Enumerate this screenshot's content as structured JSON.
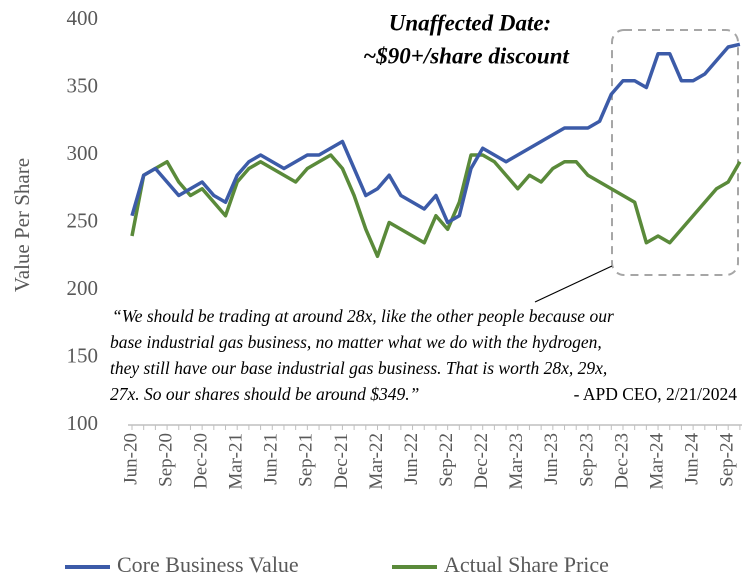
{
  "chart_data": {
    "type": "line",
    "y_label": "Value Per Share",
    "annotation": [
      "Unaffected Date:",
      "~$90+/share discount"
    ],
    "quote": [
      "“We should be trading at around 28x, like the other people because our",
      "base industrial gas business, no matter what we do with the hydrogen,",
      "they still have our base industrial gas business. That is worth 28x, 29x,",
      "27x. So our shares should be around $349.”"
    ],
    "attribution": "- APD CEO, 2/21/2024",
    "categories": [
      "Jun-20",
      null,
      null,
      "Sep-20",
      null,
      null,
      "Dec-20",
      null,
      null,
      "Mar-21",
      null,
      null,
      "Jun-21",
      null,
      null,
      "Sep-21",
      null,
      null,
      "Dec-21",
      null,
      null,
      "Mar-22",
      null,
      null,
      "Jun-22",
      null,
      null,
      "Sep-22",
      null,
      null,
      "Dec-22",
      null,
      null,
      "Mar-23",
      null,
      null,
      "Jun-23",
      null,
      null,
      "Sep-23",
      null,
      null,
      "Dec-23",
      null,
      null,
      "Mar-24",
      null,
      null,
      "Jun-24",
      null,
      null,
      "Sep-24",
      null
    ],
    "series": [
      {
        "name": "Core Business Value",
        "color": "#3c5ba8",
        "values": [
          255,
          285,
          290,
          280,
          270,
          275,
          280,
          270,
          265,
          285,
          295,
          300,
          295,
          290,
          295,
          300,
          300,
          305,
          310,
          290,
          270,
          275,
          285,
          270,
          265,
          260,
          270,
          250,
          255,
          290,
          305,
          300,
          295,
          300,
          305,
          310,
          315,
          320,
          320,
          320,
          325,
          345,
          355,
          355,
          350,
          375,
          375,
          355,
          355,
          360,
          370,
          380,
          382
        ]
      },
      {
        "name": "Actual Share Price",
        "color": "#5a8a3a",
        "values": [
          240,
          285,
          290,
          295,
          280,
          270,
          275,
          265,
          255,
          280,
          290,
          295,
          290,
          285,
          280,
          290,
          295,
          300,
          290,
          270,
          245,
          225,
          250,
          245,
          240,
          235,
          255,
          245,
          265,
          300,
          300,
          295,
          285,
          275,
          285,
          280,
          290,
          295,
          295,
          285,
          280,
          275,
          270,
          265,
          235,
          240,
          235,
          245,
          255,
          265,
          275,
          280,
          295
        ]
      }
    ],
    "ylim": [
      100,
      400
    ],
    "yticks": [
      100,
      150,
      200,
      250,
      300,
      350,
      400
    ]
  }
}
